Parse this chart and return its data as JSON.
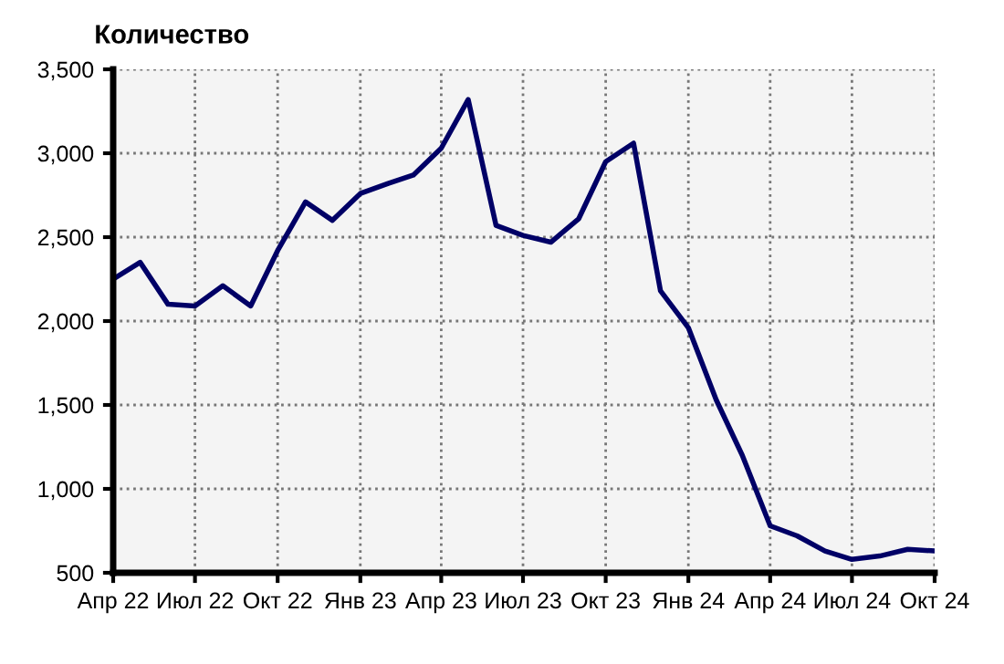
{
  "chart_data": {
    "type": "line",
    "title": "Количество",
    "x": [
      "2022-04",
      "2022-05",
      "2022-06",
      "2022-07",
      "2022-08",
      "2022-09",
      "2022-10",
      "2022-11",
      "2022-12",
      "2023-01",
      "2023-02",
      "2023-03",
      "2023-04",
      "2023-05",
      "2023-06",
      "2023-07",
      "2023-08",
      "2023-09",
      "2023-10",
      "2023-11",
      "2023-12",
      "2024-01",
      "2024-02",
      "2024-03",
      "2024-04",
      "2024-05",
      "2024-06",
      "2024-07",
      "2024-08",
      "2024-09",
      "2024-10"
    ],
    "series": [
      {
        "color": "#000066",
        "values": [
          2250,
          2350,
          2100,
          2090,
          2210,
          2090,
          2420,
          2710,
          2600,
          2760,
          2820,
          2870,
          3030,
          3320,
          2570,
          2510,
          2470,
          2610,
          2950,
          3060,
          2180,
          1960,
          1530,
          1200,
          780,
          720,
          630,
          580,
          600,
          640,
          630
        ]
      }
    ],
    "xlim": [
      "2022-04",
      "2024-10"
    ],
    "xticks": [
      {
        "value": "2022-04",
        "label": "Апр 22"
      },
      {
        "value": "2022-07",
        "label": "Июл 22"
      },
      {
        "value": "2022-10",
        "label": "Окт 22"
      },
      {
        "value": "2023-01",
        "label": "Янв 23"
      },
      {
        "value": "2023-04",
        "label": "Апр 23"
      },
      {
        "value": "2023-07",
        "label": "Июл 23"
      },
      {
        "value": "2023-10",
        "label": "Окт 23"
      },
      {
        "value": "2024-01",
        "label": "Янв 24"
      },
      {
        "value": "2024-04",
        "label": "Апр 24"
      },
      {
        "value": "2024-07",
        "label": "Июл 24"
      },
      {
        "value": "2024-10",
        "label": "Окт 24"
      }
    ],
    "ylim": [
      500,
      3500
    ],
    "yticks": [
      {
        "value": 500,
        "label": "500"
      },
      {
        "value": 1000,
        "label": "1,000"
      },
      {
        "value": 1500,
        "label": "1,500"
      },
      {
        "value": 2000,
        "label": "2,000"
      },
      {
        "value": 2500,
        "label": "2,500"
      },
      {
        "value": 3000,
        "label": "3,000"
      },
      {
        "value": 3500,
        "label": "3,500"
      }
    ],
    "grid": true,
    "marker": "none",
    "line_style": "solid"
  }
}
